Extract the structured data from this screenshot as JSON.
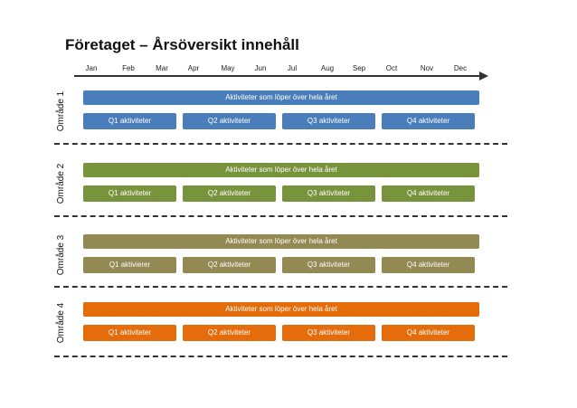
{
  "title": "Företaget – Årsöversikt innehåll",
  "months": [
    "Jan",
    "Feb",
    "Mar",
    "Apr",
    "May",
    "Jun",
    "Jul",
    "Aug",
    "Sep",
    "Oct",
    "Nov",
    "Dec"
  ],
  "areas": [
    {
      "label": "Område 1",
      "color": "#4a7ebb",
      "full_year": "Aktiviteter som löper över hela året",
      "quarters": [
        "Q1 aktiviteter",
        "Q2 aktiviteter",
        "Q3 aktiviteter",
        "Q4 aktiviteter"
      ]
    },
    {
      "label": "Område 2",
      "color": "#77933c",
      "full_year": "Aktiviteter som löper över hela året",
      "quarters": [
        "Q1 aktiviteter",
        "Q2 aktiviteter",
        "Q3 aktiviteter",
        "Q4 aktiviteter"
      ]
    },
    {
      "label": "Område 3",
      "color": "#938953",
      "full_year": "Aktiviteter som löper över hela året",
      "quarters": [
        "Q1 aktivierer",
        "Q2 aktiviteter",
        "Q3 aktiviteter",
        "Q4 aktiviteter"
      ]
    },
    {
      "label": "Område 4",
      "color": "#e46c0a",
      "full_year": "Aktiviteter som löper över hela året",
      "quarters": [
        "Q1 aktiviteter",
        "Q2 aktiviteter",
        "Q3 aktiviteter",
        "Q4 aktiviteter"
      ]
    }
  ]
}
